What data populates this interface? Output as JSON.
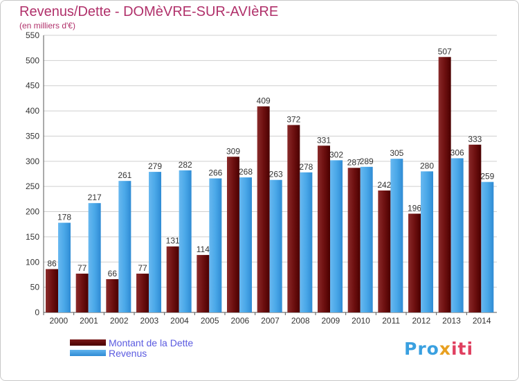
{
  "chart_data": {
    "type": "bar",
    "title": "Revenus/Dette - DOMèVRE-SUR-AVIèRE",
    "subtitle": "(en milliers d'€)",
    "categories": [
      "2000",
      "2001",
      "2002",
      "2003",
      "2004",
      "2005",
      "2006",
      "2007",
      "2008",
      "2009",
      "2010",
      "2011",
      "2012",
      "2013",
      "2014"
    ],
    "series": [
      {
        "name": "Montant de la Dette",
        "color": "#6e1010",
        "values": [
          86,
          77,
          66,
          77,
          131,
          114,
          309,
          409,
          372,
          331,
          287,
          242,
          196,
          507,
          333
        ]
      },
      {
        "name": "Revenus",
        "color": "#4aa8e8",
        "values": [
          178,
          217,
          261,
          279,
          282,
          266,
          268,
          263,
          278,
          302,
          289,
          305,
          280,
          306,
          259
        ]
      }
    ],
    "ylim": [
      0,
      550
    ],
    "yticks": [
      0,
      50,
      100,
      150,
      200,
      250,
      300,
      350,
      400,
      450,
      500,
      550
    ],
    "grid": true,
    "legend": "bottom-left"
  },
  "logo": {
    "part1": "Pro",
    "part2": "x",
    "part3": "iti"
  }
}
